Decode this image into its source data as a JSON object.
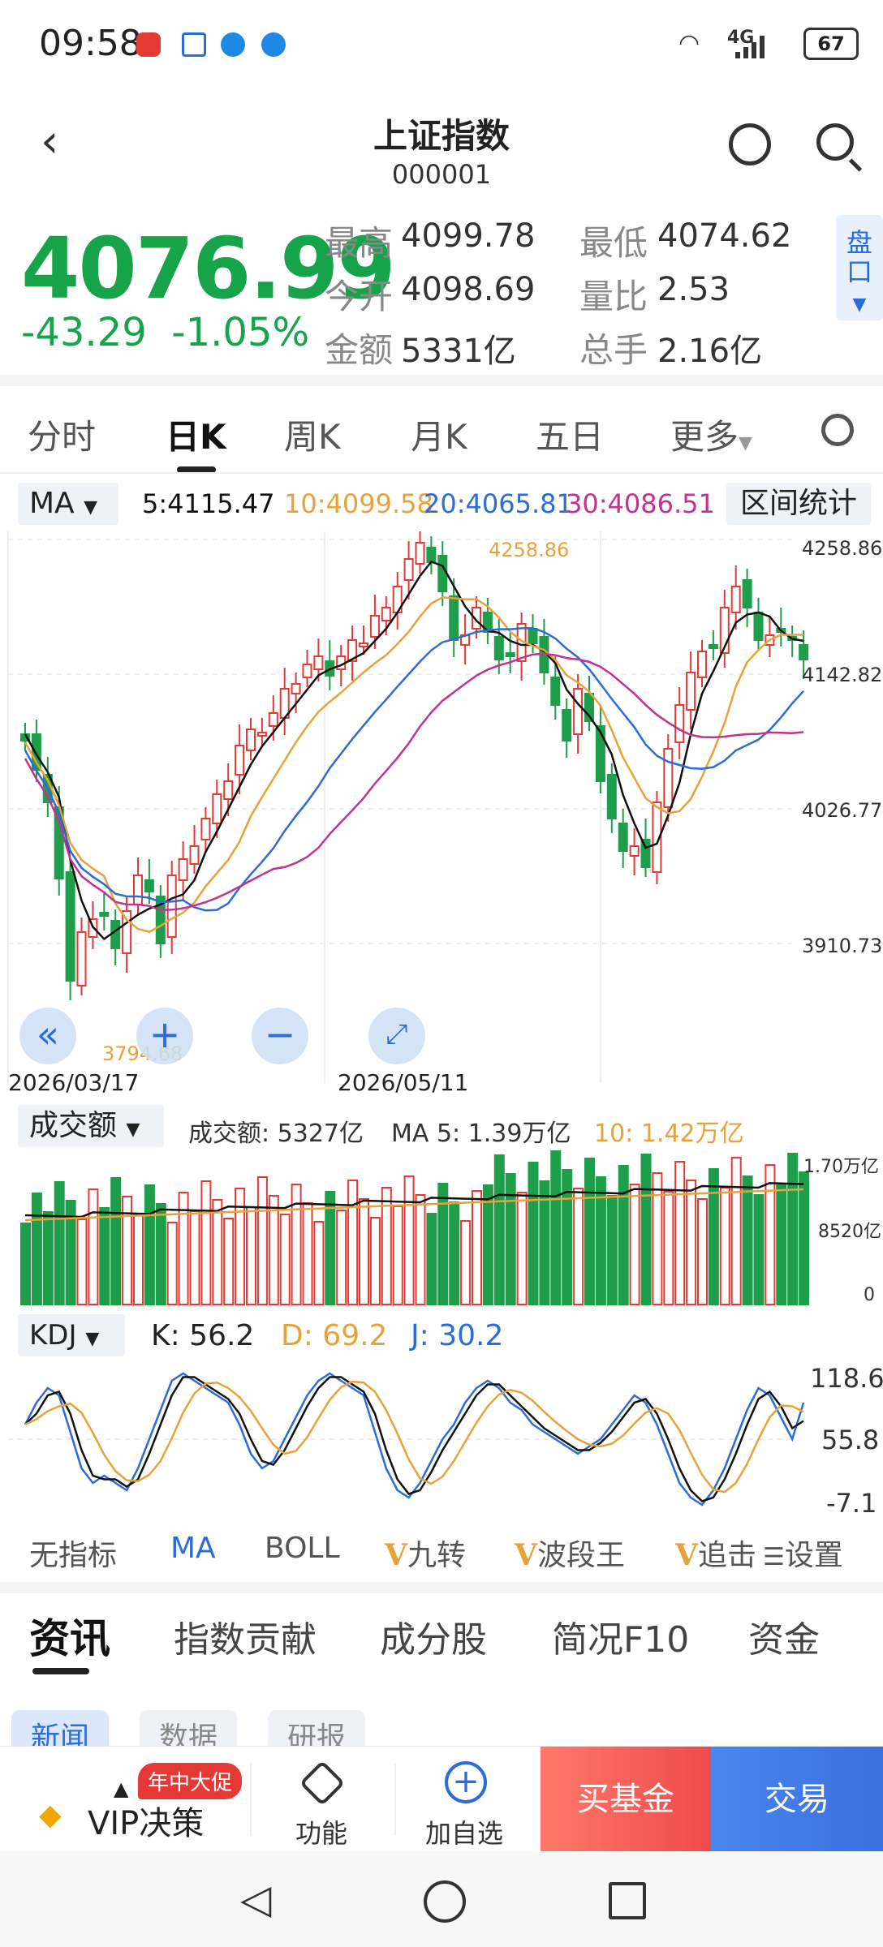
{
  "status_bar": {
    "time": "09:58",
    "network": "4G",
    "battery": "67"
  },
  "header": {
    "title": "上证指数",
    "code": "000001"
  },
  "quote": {
    "price": "4076.99",
    "change": "-43.29",
    "change_pct": "-1.05%",
    "high_label": "最高",
    "high": "4099.78",
    "low_label": "最低",
    "low": "4074.62",
    "open_label": "今开",
    "open": "4098.69",
    "vol_ratio_label": "量比",
    "vol_ratio": "2.53",
    "amount_label": "金额",
    "amount": "5331亿",
    "total_hands_label": "总手",
    "total_hands": "2.16亿",
    "pankou": "盘口",
    "down_color": "#17a34a"
  },
  "ktabs": [
    "分时",
    "日K",
    "周K",
    "月K",
    "五日",
    "更多"
  ],
  "ma_row": {
    "selector": "MA",
    "ma5": "5:4115.47",
    "ma10": "10:4099.58",
    "ma20": "20:4065.81",
    "ma30": "30:4086.51",
    "stats_button": "区间统计"
  },
  "price_chart": {
    "y_ticks": [
      "4258.86",
      "4142.82",
      "4026.77",
      "3910.73",
      "3794.68"
    ],
    "high_mark": "4258.86",
    "low_mark": "3794.68",
    "dates": [
      "2026/03/17",
      "2026/05/11"
    ]
  },
  "volume": {
    "selector": "成交额",
    "amount": "成交额: 5327亿",
    "ma5": "MA 5: 1.39万亿",
    "ma10": "10: 1.42万亿",
    "y_ticks": [
      "1.70万亿",
      "8520亿",
      "0"
    ]
  },
  "kdj": {
    "selector": "KDJ",
    "k": "K: 56.2",
    "d": "D: 69.2",
    "j": "J: 30.2",
    "y_ticks": [
      "118.6",
      "55.8",
      "-7.1"
    ]
  },
  "indicators": [
    "无指标",
    "MA",
    "BOLL",
    "九转",
    "波段王",
    "追击",
    "设置"
  ],
  "news_tabs": [
    "资讯",
    "指数贡献",
    "成分股",
    "简况F10",
    "资金"
  ],
  "news_chips": [
    "新闻",
    "数据",
    "研报"
  ],
  "bottom": {
    "promo_badge": "年中大促",
    "vip": "VIP决策",
    "func": "功能",
    "add": "加自选",
    "buy_fund": "买基金",
    "trade": "交易"
  },
  "colors": {
    "up": "#e53935",
    "down": "#1e9e4a",
    "ma5": "#111111",
    "ma10": "#e8a23a",
    "ma20": "#2b6cd6",
    "ma30": "#c0338f"
  }
}
